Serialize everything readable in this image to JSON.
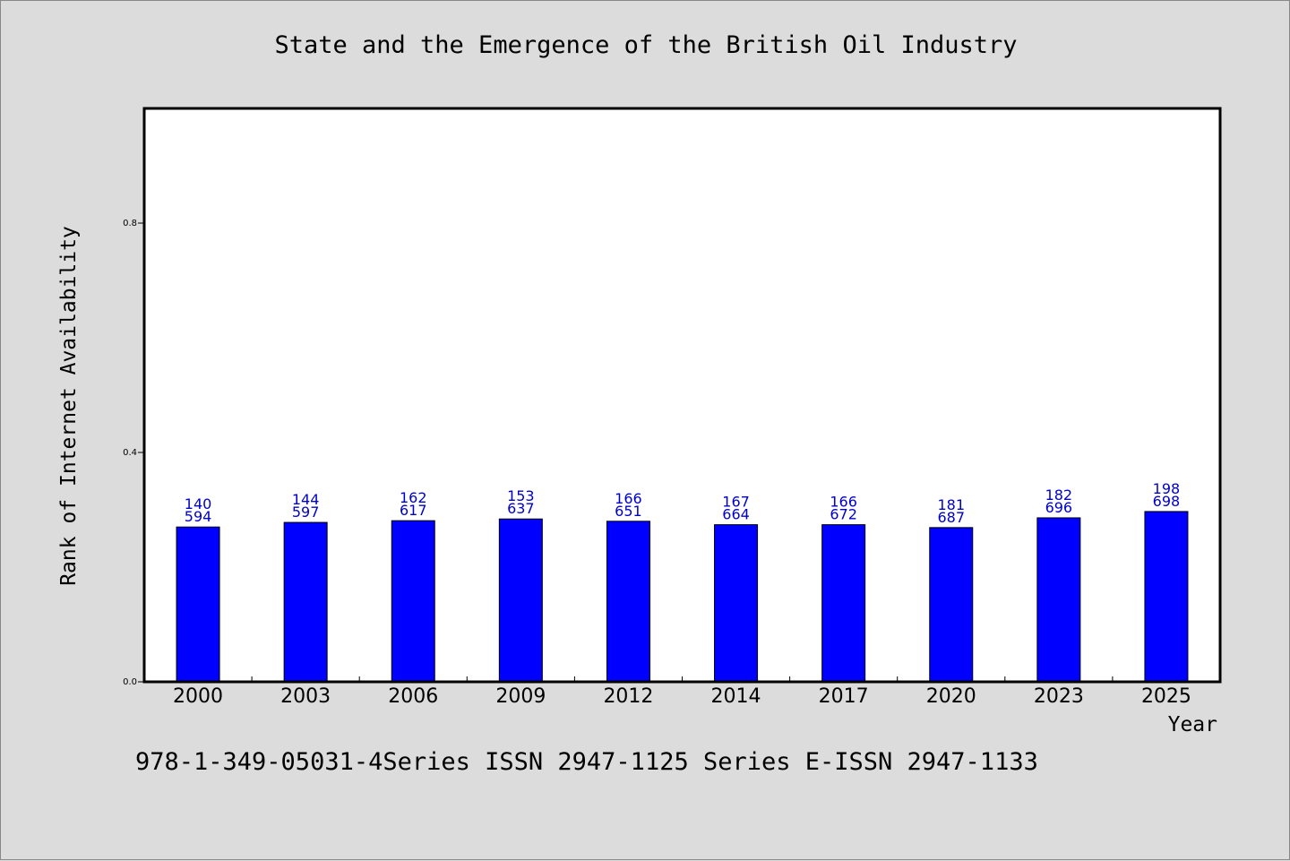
{
  "chart_data": {
    "type": "bar",
    "title": "State and the Emergence of the British Oil Industry",
    "xlabel": "Year",
    "ylabel": "Rank of Internet Availability",
    "footnote": "978-1-349-05031-4Series ISSN 2947-1125 Series E-ISSN 2947-1133",
    "categories": [
      "2000",
      "2003",
      "2006",
      "2009",
      "2012",
      "2014",
      "2017",
      "2020",
      "2023",
      "2025"
    ],
    "values": [
      0.27,
      0.278,
      0.281,
      0.284,
      0.28,
      0.274,
      0.274,
      0.269,
      0.286,
      0.297
    ],
    "labels_top": [
      "140",
      "144",
      "162",
      "153",
      "166",
      "167",
      "166",
      "181",
      "182",
      "198"
    ],
    "labels_bottom": [
      "594",
      "597",
      "617",
      "637",
      "651",
      "664",
      "672",
      "687",
      "696",
      "698"
    ],
    "ylim": [
      0,
      1.0
    ],
    "yticks": [
      0.0,
      0.4,
      0.8
    ],
    "ytick_labels": [
      "0.0",
      "0.4",
      "0.8"
    ],
    "grid": false,
    "bar_color": "#0000ff",
    "label_color": "#0000cc",
    "plot_background": "#ffffff",
    "page_background": "#dcdcdc"
  }
}
